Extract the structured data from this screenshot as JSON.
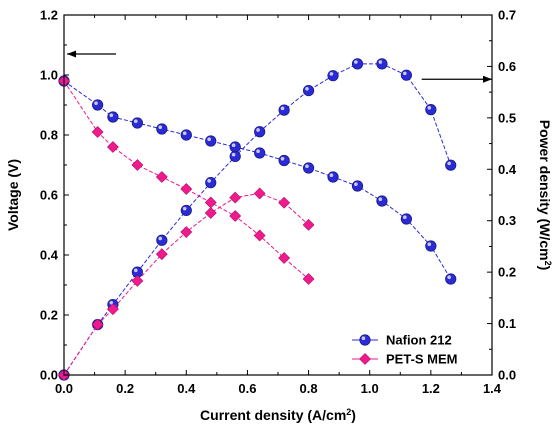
{
  "chart_data": {
    "type": "line",
    "xlabel": "Current density (A/cm",
    "xlabel_sup": "2",
    "xlabel_end": ")",
    "ylabel_left": "Voltage (V)",
    "ylabel_right": "Power density (W/cm",
    "ylabel_right_sup": "2",
    "ylabel_right_end": ")",
    "xlim": [
      0,
      1.4
    ],
    "ylim_left": [
      0,
      1.2
    ],
    "ylim_right": [
      0,
      0.7
    ],
    "x_ticks": [
      "0.0",
      "0.2",
      "0.4",
      "0.6",
      "0.8",
      "1.0",
      "1.2",
      "1.4"
    ],
    "y_left_ticks": [
      "0.0",
      "0.2",
      "0.4",
      "0.6",
      "0.8",
      "1.0",
      "1.2"
    ],
    "y_right_ticks": [
      "0.0",
      "0.1",
      "0.2",
      "0.3",
      "0.4",
      "0.5",
      "0.6",
      "0.7"
    ],
    "legend_position": "bottom-right",
    "grid": false,
    "series": [
      {
        "name": "Nafion 212",
        "color": "#2b2bd6",
        "marker": "circle",
        "axis": "left",
        "x": [
          0,
          0.11,
          0.16,
          0.24,
          0.32,
          0.4,
          0.48,
          0.56,
          0.64,
          0.72,
          0.8,
          0.88,
          0.96,
          1.04,
          1.12,
          1.2,
          1.265
        ],
        "y": [
          0.98,
          0.9,
          0.86,
          0.84,
          0.82,
          0.8,
          0.78,
          0.76,
          0.74,
          0.715,
          0.69,
          0.66,
          0.63,
          0.58,
          0.52,
          0.43,
          0.32
        ]
      },
      {
        "name": "Nafion 212",
        "color": "#2b2bd6",
        "marker": "circle",
        "axis": "right",
        "x": [
          0,
          0.11,
          0.16,
          0.24,
          0.32,
          0.4,
          0.48,
          0.56,
          0.64,
          0.72,
          0.8,
          0.88,
          0.96,
          1.04,
          1.12,
          1.2,
          1.265
        ],
        "y": [
          0.0,
          0.098,
          0.137,
          0.2,
          0.262,
          0.32,
          0.374,
          0.425,
          0.473,
          0.515,
          0.553,
          0.582,
          0.605,
          0.605,
          0.583,
          0.516,
          0.408
        ]
      },
      {
        "name": "PET-S MEM",
        "color": "#f01a8c",
        "marker": "diamond",
        "axis": "left",
        "x": [
          0,
          0.11,
          0.16,
          0.24,
          0.32,
          0.4,
          0.48,
          0.56,
          0.64,
          0.72,
          0.8
        ],
        "y": [
          0.98,
          0.81,
          0.76,
          0.7,
          0.66,
          0.62,
          0.575,
          0.53,
          0.465,
          0.39,
          0.32
        ]
      },
      {
        "name": "PET-S MEM",
        "color": "#f01a8c",
        "marker": "diamond",
        "axis": "right",
        "x": [
          0,
          0.11,
          0.16,
          0.24,
          0.32,
          0.4,
          0.48,
          0.56,
          0.64,
          0.72,
          0.8
        ],
        "y": [
          0.0,
          0.098,
          0.128,
          0.183,
          0.235,
          0.278,
          0.315,
          0.345,
          0.353,
          0.335,
          0.292
        ]
      }
    ],
    "legend": [
      {
        "label": "Nafion 212",
        "color": "#2b2bd6",
        "marker": "circle"
      },
      {
        "label": "PET-S MEM",
        "color": "#f01a8c",
        "marker": "diamond"
      }
    ],
    "annotations": [
      {
        "type": "arrow",
        "direction": "left",
        "axis": "left",
        "x_from": 0.17,
        "x_to": 0.01,
        "y": 1.07
      },
      {
        "type": "arrow",
        "direction": "right",
        "axis": "right",
        "x_from": 1.17,
        "x_to": 1.4,
        "y": 0.575
      }
    ]
  }
}
